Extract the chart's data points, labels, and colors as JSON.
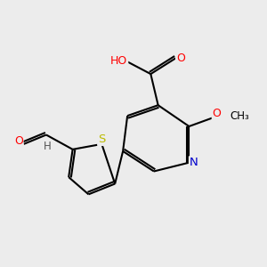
{
  "background_color": "#ececec",
  "bond_color": "#000000",
  "atom_colors": {
    "C": "#000000",
    "N": "#0000cc",
    "O": "#ff0000",
    "S": "#bbbb00",
    "H": "#555555"
  },
  "figsize": [
    3.0,
    3.0
  ],
  "dpi": 100
}
